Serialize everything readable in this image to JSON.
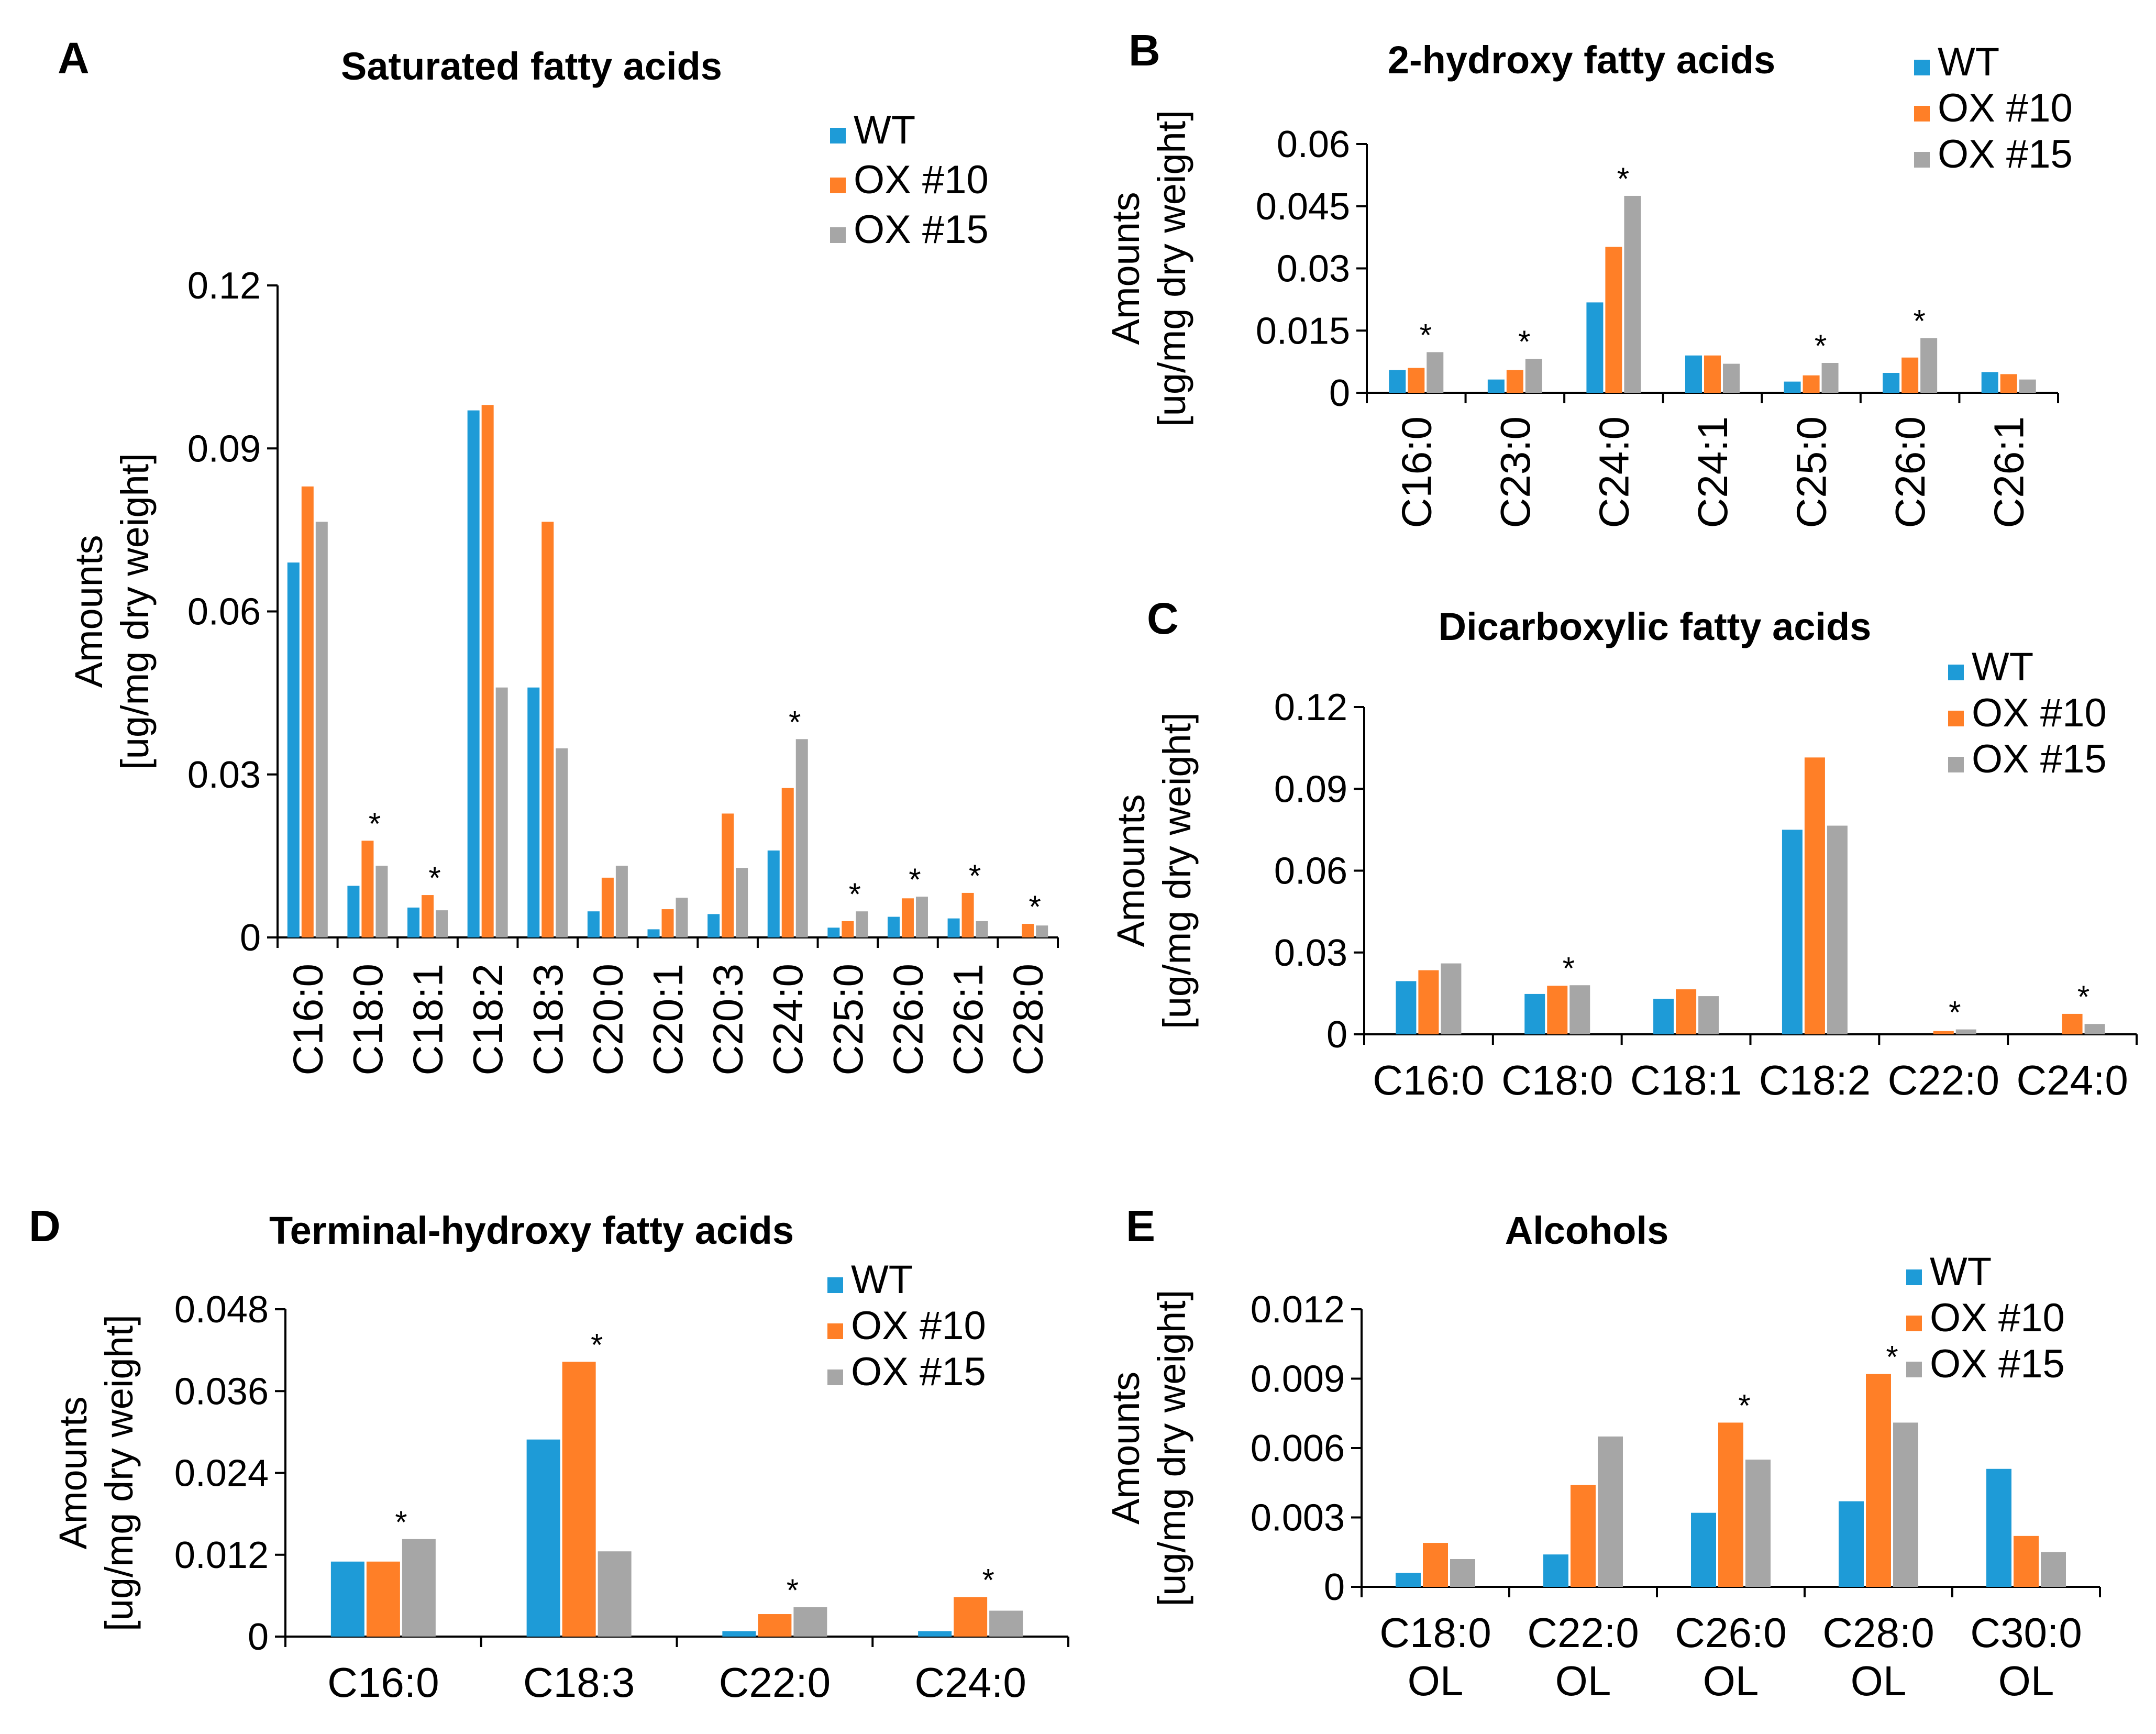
{
  "colors": {
    "WT": "#1E9BD7",
    "OX #10": "#FF7F27",
    "OX #15": "#A6A6A6"
  },
  "ylabel": [
    "Amounts",
    "[ug/mg dry weight]"
  ],
  "chart_data": [
    {
      "panel": "A",
      "type": "bar",
      "title": "Saturated fatty acids",
      "categories": [
        "C16:0",
        "C18:0",
        "C18:1",
        "C18:2",
        "C18:3",
        "C20:0",
        "C20:1",
        "C20:3",
        "C24:0",
        "C25:0",
        "C26:0",
        "C26:1",
        "C28:0"
      ],
      "series": [
        {
          "name": "WT",
          "values": [
            0.069,
            0.0095,
            0.0055,
            0.097,
            0.046,
            0.0048,
            0.0015,
            0.0043,
            0.016,
            0.0018,
            0.0038,
            0.0035,
            0
          ]
        },
        {
          "name": "OX #10",
          "values": [
            0.083,
            0.0178,
            0.0078,
            0.098,
            0.0765,
            0.011,
            0.0052,
            0.0228,
            0.0275,
            0.003,
            0.0072,
            0.0082,
            0.0025
          ]
        },
        {
          "name": "OX #15",
          "values": [
            0.0765,
            0.0132,
            0.005,
            0.046,
            0.0348,
            0.0132,
            0.0073,
            0.0128,
            0.0365,
            0.0048,
            0.0075,
            0.003,
            0.0022
          ]
        }
      ],
      "significance": [
        false,
        true,
        true,
        false,
        false,
        false,
        false,
        false,
        true,
        true,
        true,
        true,
        true
      ],
      "yticks": [
        "0",
        "0.03",
        "0.06",
        "0.09",
        "0.12"
      ],
      "ylim": [
        0,
        0.12
      ],
      "xlabel": "",
      "ylabel": "Amounts [ug/mg dry weight]",
      "legend": "top-right"
    },
    {
      "panel": "B",
      "type": "bar",
      "title": "2-hydroxy fatty acids",
      "categories": [
        "C16:0",
        "C23:0",
        "C24:0",
        "C24:1",
        "C25:0",
        "C26:0",
        "C26:1"
      ],
      "series": [
        {
          "name": "WT",
          "values": [
            0.0055,
            0.0032,
            0.0218,
            0.009,
            0.0027,
            0.0048,
            0.005
          ]
        },
        {
          "name": "OX #10",
          "values": [
            0.006,
            0.0055,
            0.0352,
            0.009,
            0.0042,
            0.0085,
            0.0045
          ]
        },
        {
          "name": "OX #15",
          "values": [
            0.0098,
            0.0082,
            0.0475,
            0.007,
            0.0072,
            0.0132,
            0.0032
          ]
        }
      ],
      "significance": [
        true,
        true,
        true,
        false,
        true,
        true,
        false
      ],
      "yticks": [
        "0",
        "0.015",
        "0.03",
        "0.045",
        "0.06"
      ],
      "ylim": [
        0,
        0.06
      ],
      "xlabel": "",
      "ylabel": "Amounts [ug/mg dry weight]",
      "legend": "top-right"
    },
    {
      "panel": "C",
      "type": "bar",
      "title": "Dicarboxylic fatty acids",
      "categories": [
        "C16:0",
        "C18:0",
        "C18:1",
        "C18:2",
        "C22:0",
        "C24:0"
      ],
      "series": [
        {
          "name": "WT",
          "values": [
            0.0195,
            0.0148,
            0.013,
            0.075,
            0,
            0
          ]
        },
        {
          "name": "OX #10",
          "values": [
            0.0235,
            0.0178,
            0.0165,
            0.1015,
            0.0012,
            0.0075
          ]
        },
        {
          "name": "OX #15",
          "values": [
            0.026,
            0.018,
            0.014,
            0.0765,
            0.0018,
            0.0038
          ]
        }
      ],
      "significance": [
        false,
        true,
        false,
        false,
        true,
        true
      ],
      "yticks": [
        "0",
        "0.03",
        "0.06",
        "0.09",
        "0.12"
      ],
      "ylim": [
        0,
        0.12
      ],
      "xlabel": "",
      "ylabel": "Amounts [ug/mg dry weight]",
      "legend": "top-right"
    },
    {
      "panel": "D",
      "type": "bar",
      "title": "Terminal-hydroxy fatty acids",
      "categories": [
        "C16:0",
        "C18:3",
        "C22:0",
        "C24:0"
      ],
      "series": [
        {
          "name": "WT",
          "values": [
            0.011,
            0.0289,
            0.0008,
            0.0008
          ]
        },
        {
          "name": "OX #10",
          "values": [
            0.011,
            0.0403,
            0.0033,
            0.0058
          ]
        },
        {
          "name": "OX #15",
          "values": [
            0.0143,
            0.0125,
            0.0043,
            0.0038
          ]
        }
      ],
      "significance": [
        true,
        true,
        true,
        true
      ],
      "yticks": [
        "0",
        "0.012",
        "0.024",
        "0.036",
        "0.048"
      ],
      "ylim": [
        0,
        0.048
      ],
      "xlabel": "",
      "ylabel": "Amounts [ug/mg dry weight]",
      "legend": "top-right"
    },
    {
      "panel": "E",
      "type": "bar",
      "title": "Alcohols",
      "categories": [
        "C18:0\nOL",
        "C22:0\nOL",
        "C26:0\nOL",
        "C28:0\nOL",
        "C30:0\nOL"
      ],
      "series": [
        {
          "name": "WT",
          "values": [
            0.0006,
            0.0014,
            0.0032,
            0.0037,
            0.0051
          ]
        },
        {
          "name": "OX #10",
          "values": [
            0.0019,
            0.0044,
            0.0071,
            0.0092,
            0.0022
          ]
        },
        {
          "name": "OX #15",
          "values": [
            0.0012,
            0.0065,
            0.0055,
            0.0071,
            0.0015
          ]
        }
      ],
      "significance": [
        false,
        false,
        true,
        true,
        false
      ],
      "yticks": [
        "0",
        "0.003",
        "0.006",
        "0.009",
        "0.012"
      ],
      "ylim": [
        0,
        0.012
      ],
      "xlabel": "",
      "ylabel": "Amounts [ug/mg dry weight]",
      "legend": "top-right"
    }
  ]
}
